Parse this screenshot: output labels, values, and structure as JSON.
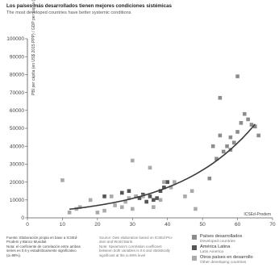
{
  "title": "Los países más desarrollados tienen mejores condiciones sistémicas",
  "subtitle": "The most developed countries have better systemic conditions",
  "source_note": "ICSEd-Prodem",
  "sources": {
    "es": [
      "Fuente: Elaboración propia en base a ICSEd-",
      "Prodem y Banco Mundial.",
      "Nota: el coeficiente de correlación entre ambas",
      "series es 0,6 y estadísticamente significativo",
      "(α=99%)."
    ],
    "en": [
      "Source: Own elaboration based on ICSEd-Pro-",
      "dem and World Bank.",
      "Note: Spearman's correlation coefficient",
      "between both variables is 0.6 and statistically",
      "significant at the α=99% level"
    ]
  },
  "legend": [
    {
      "label": "Países desarrollados",
      "sublabel": "Developed countries",
      "color": "#8c8c8c"
    },
    {
      "label": "América Latina",
      "sublabel": "Latin America",
      "color": "#555555"
    },
    {
      "label": "Otros países en desarrollo",
      "sublabel": "Other developing countries",
      "color": "#aaaaaa"
    }
  ],
  "chart_data": {
    "type": "scatter",
    "title": "Los países más desarrollados tienen mejores condiciones sistémicas",
    "xlabel": "",
    "ylabel": "PBI per cápita (en US$ 2015 PPP) / GDP per capita (in US$ 2015 PPP)",
    "xlim": [
      0,
      70
    ],
    "ylim": [
      0,
      100000
    ],
    "x_ticks": [
      0,
      10,
      20,
      30,
      40,
      50,
      60,
      70
    ],
    "y_ticks": [
      0,
      10000,
      20000,
      30000,
      40000,
      50000,
      60000,
      70000,
      80000,
      90000,
      100000
    ],
    "x_tick_labels": [
      "0",
      "10",
      "20",
      "30",
      "40",
      "50",
      "60",
      "70"
    ],
    "y_tick_labels": [
      "0",
      "10000",
      "20000",
      "30000",
      "40000",
      "50000",
      "60000",
      "70000",
      "80000",
      "90000",
      "100000"
    ],
    "grid": false,
    "trend": "exponential",
    "series": [
      {
        "name": "Países desarrollados",
        "color": "#8c8c8c",
        "points": [
          [
            52,
            22000
          ],
          [
            54,
            33000
          ],
          [
            55,
            46000
          ],
          [
            56,
            37000
          ],
          [
            57,
            40000
          ],
          [
            58,
            45000
          ],
          [
            59,
            42000
          ],
          [
            60,
            48000
          ],
          [
            61,
            53000
          ],
          [
            62,
            58000
          ],
          [
            63,
            55000
          ],
          [
            64,
            52000
          ],
          [
            65,
            51000
          ],
          [
            55,
            67000
          ],
          [
            60,
            79000
          ],
          [
            66,
            46000
          ],
          [
            53,
            40000
          ],
          [
            58,
            38000
          ]
        ]
      },
      {
        "name": "América Latina",
        "color": "#555555",
        "points": [
          [
            22,
            12000
          ],
          [
            27,
            14000
          ],
          [
            29,
            15000
          ],
          [
            31,
            12000
          ],
          [
            32,
            11000
          ],
          [
            33,
            13000
          ],
          [
            34,
            9000
          ],
          [
            35,
            12000
          ],
          [
            36,
            10000
          ],
          [
            37,
            11000
          ],
          [
            38,
            15000
          ],
          [
            39,
            17000
          ],
          [
            40,
            20000
          ]
        ]
      },
      {
        "name": "Otros países en desarrollo",
        "color": "#aaaaaa",
        "points": [
          [
            10,
            21000
          ],
          [
            12,
            3000
          ],
          [
            14,
            5000
          ],
          [
            15,
            6000
          ],
          [
            18,
            10000
          ],
          [
            20,
            3000
          ],
          [
            22,
            4000
          ],
          [
            24,
            12000
          ],
          [
            25,
            7000
          ],
          [
            27,
            6000
          ],
          [
            28,
            9000
          ],
          [
            29,
            11000
          ],
          [
            30,
            5000
          ],
          [
            30,
            32000
          ],
          [
            31,
            12000
          ],
          [
            33,
            12000
          ],
          [
            35,
            28000
          ],
          [
            36,
            6000
          ],
          [
            38,
            10000
          ],
          [
            39,
            20000
          ],
          [
            41,
            17000
          ],
          [
            42,
            20000
          ],
          [
            45,
            12000
          ],
          [
            47,
            15000
          ],
          [
            48,
            5000
          ]
        ]
      }
    ]
  }
}
